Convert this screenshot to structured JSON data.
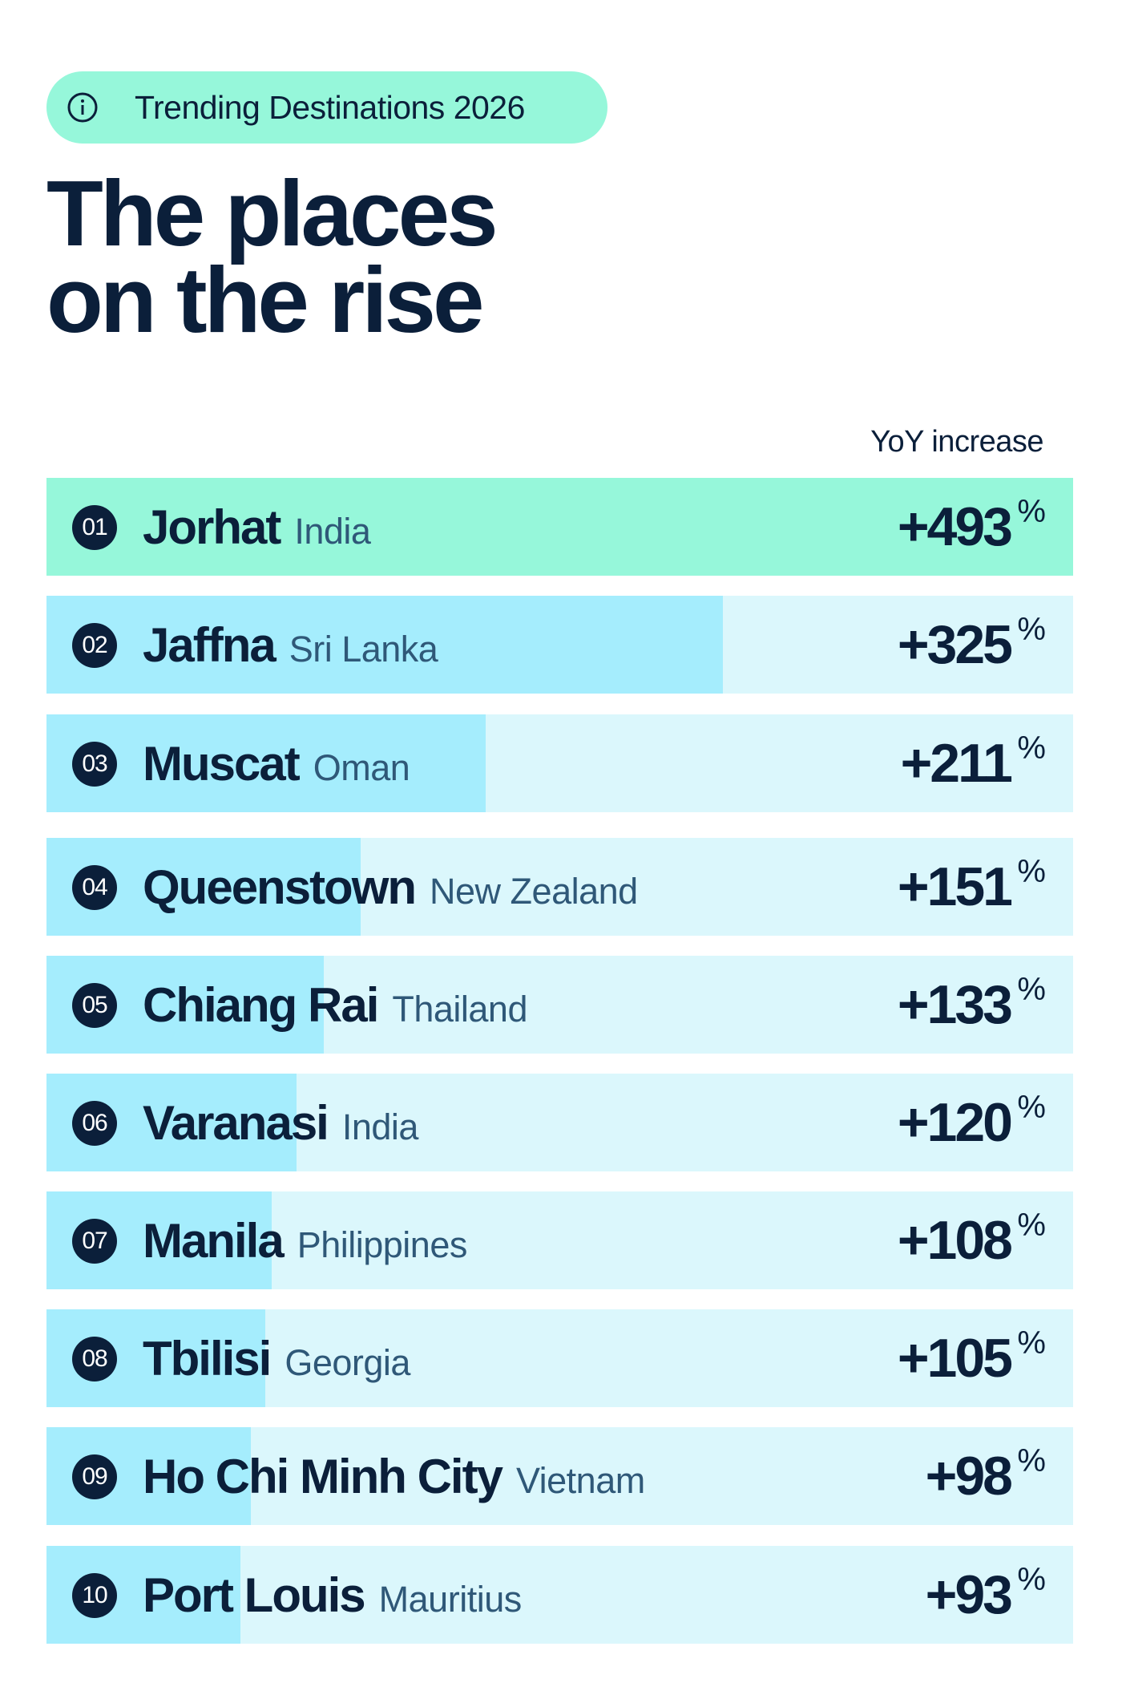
{
  "badge": {
    "text": "Trending Destinations 2026",
    "icon": "info-icon"
  },
  "headline": {
    "line1": "The places",
    "line2": "on the rise"
  },
  "chart_data": {
    "type": "bar",
    "title": "The places on the rise",
    "value_label": "YoY increase",
    "unit": "%",
    "orientation": "horizontal",
    "max_value": 493,
    "colors": {
      "top_bar": "#96f7da",
      "bar_fill": "#a5edfd",
      "bar_track": "#dbf7fc",
      "text": "#0b1f3a",
      "country": "#2f5878"
    },
    "rows": [
      {
        "rank": "01",
        "city": "Jorhat",
        "country": "India",
        "value": 493,
        "display": "+493"
      },
      {
        "rank": "02",
        "city": "Jaffna",
        "country": "Sri Lanka",
        "value": 325,
        "display": "+325"
      },
      {
        "rank": "03",
        "city": "Muscat",
        "country": "Oman",
        "value": 211,
        "display": "+211"
      },
      {
        "rank": "04",
        "city": "Queenstown",
        "country": "New Zealand",
        "value": 151,
        "display": "+151"
      },
      {
        "rank": "05",
        "city": "Chiang Rai",
        "country": "Thailand",
        "value": 133,
        "display": "+133"
      },
      {
        "rank": "06",
        "city": "Varanasi",
        "country": "India",
        "value": 120,
        "display": "+120"
      },
      {
        "rank": "07",
        "city": "Manila",
        "country": "Philippines",
        "value": 108,
        "display": "+108"
      },
      {
        "rank": "08",
        "city": "Tbilisi",
        "country": "Georgia",
        "value": 105,
        "display": "+105"
      },
      {
        "rank": "09",
        "city": "Ho Chi Minh City",
        "country": "Vietnam",
        "value": 98,
        "display": "+98"
      },
      {
        "rank": "10",
        "city": "Port Louis",
        "country": "Mauritius",
        "value": 93,
        "display": "+93"
      }
    ]
  }
}
